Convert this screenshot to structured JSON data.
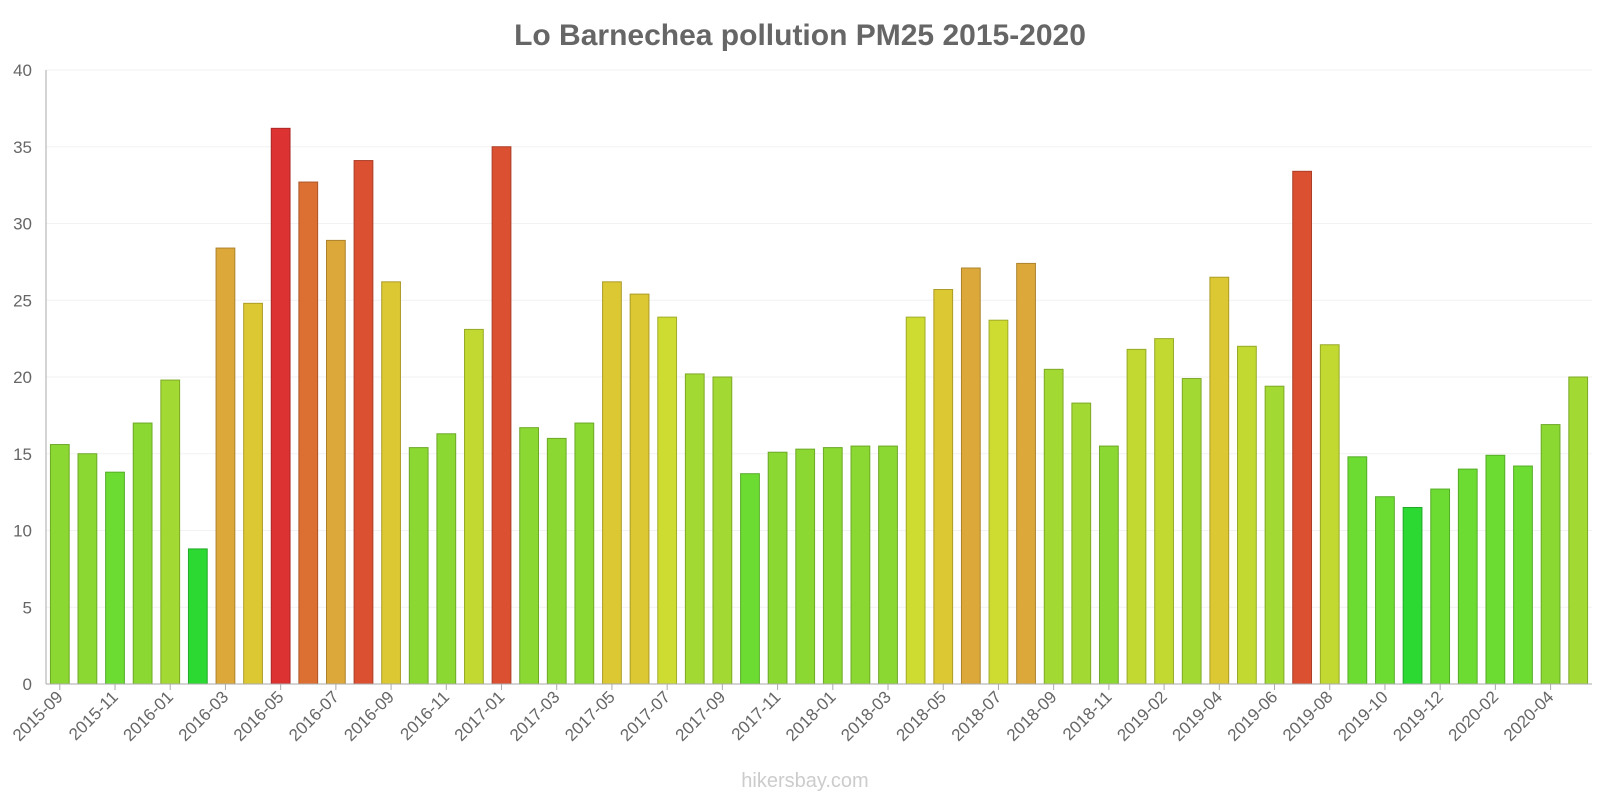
{
  "chart_data": {
    "type": "bar",
    "title": "Lo Barnechea pollution PM25 2015-2020",
    "xlabel": "",
    "ylabel": "",
    "ylim": [
      0,
      40
    ],
    "yticks": [
      0,
      5,
      10,
      15,
      20,
      25,
      30,
      35,
      40
    ],
    "grid": true,
    "legend": "none",
    "categories": [
      "2015-09",
      "2015-10",
      "2015-11",
      "2015-12",
      "2016-01",
      "2016-02",
      "2016-03",
      "2016-04",
      "2016-05",
      "2016-06",
      "2016-07",
      "2016-08",
      "2016-09",
      "2016-10",
      "2016-11",
      "2016-12",
      "2017-01",
      "2017-02",
      "2017-03",
      "2017-04",
      "2017-05",
      "2017-06",
      "2017-07",
      "2017-08",
      "2017-09",
      "2017-10",
      "2017-11",
      "2017-12",
      "2018-01",
      "2018-02",
      "2018-03",
      "2018-04",
      "2018-05",
      "2018-06",
      "2018-07",
      "2018-08",
      "2018-09",
      "2018-10",
      "2018-11",
      "2019-01",
      "2019-02",
      "2019-03",
      "2019-04",
      "2019-05",
      "2019-06",
      "2019-07",
      "2019-08",
      "2019-09",
      "2019-10",
      "2019-11",
      "2019-12",
      "2020-01",
      "2020-02",
      "2020-03",
      "2020-04",
      "2020-05"
    ],
    "xtick_labels": [
      "2015-09",
      "2015-11",
      "2016-01",
      "2016-03",
      "2016-05",
      "2016-07",
      "2016-09",
      "2016-11",
      "2017-01",
      "2017-03",
      "2017-05",
      "2017-07",
      "2017-09",
      "2017-11",
      "2018-01",
      "2018-03",
      "2018-05",
      "2018-07",
      "2018-09",
      "2018-11",
      "2019-02",
      "2019-04",
      "2019-06",
      "2019-08",
      "2019-10",
      "2019-12",
      "2020-02",
      "2020-04"
    ],
    "values": [
      15.6,
      15.0,
      13.8,
      17.0,
      19.8,
      8.8,
      28.4,
      24.8,
      36.2,
      32.7,
      28.9,
      34.1,
      26.2,
      15.4,
      16.3,
      23.1,
      35.0,
      16.7,
      16.0,
      17.0,
      26.2,
      25.4,
      23.9,
      20.2,
      20.0,
      13.7,
      15.1,
      15.3,
      15.4,
      15.5,
      15.5,
      23.9,
      25.7,
      27.1,
      23.7,
      27.4,
      20.5,
      18.3,
      15.5,
      21.8,
      22.5,
      19.9,
      26.5,
      22.0,
      19.4,
      33.4,
      22.1,
      14.8,
      12.2,
      11.5,
      12.7,
      14.0,
      14.9,
      14.2,
      16.9,
      20.0
    ],
    "colors": [
      "#8cd832",
      "#8cd832",
      "#6ddc32",
      "#8cd832",
      "#a2d932",
      "#2bd932",
      "#dca83a",
      "#dcc832",
      "#dc3232",
      "#dc7032",
      "#dca83a",
      "#dc5032",
      "#dcc832",
      "#8cd832",
      "#8cd832",
      "#c2d932",
      "#dc5032",
      "#8cd832",
      "#8cd832",
      "#8cd832",
      "#dcc832",
      "#dcc832",
      "#cedc32",
      "#a2d932",
      "#a2d932",
      "#6ddc32",
      "#8cd832",
      "#8cd832",
      "#8cd832",
      "#8cd832",
      "#8cd832",
      "#cedc32",
      "#dcc832",
      "#dca83a",
      "#cedc32",
      "#dca83a",
      "#a2d932",
      "#a2d932",
      "#8cd832",
      "#c2d932",
      "#c2d932",
      "#a2d932",
      "#dcc832",
      "#c2d932",
      "#a2d932",
      "#dc5032",
      "#c2d932",
      "#6ddc32",
      "#6ddc32",
      "#2bd932",
      "#6ddc32",
      "#6ddc32",
      "#6ddc32",
      "#6ddc32",
      "#8cd832",
      "#a2d932"
    ]
  },
  "footer": {
    "credit": "hikersbay.com"
  }
}
